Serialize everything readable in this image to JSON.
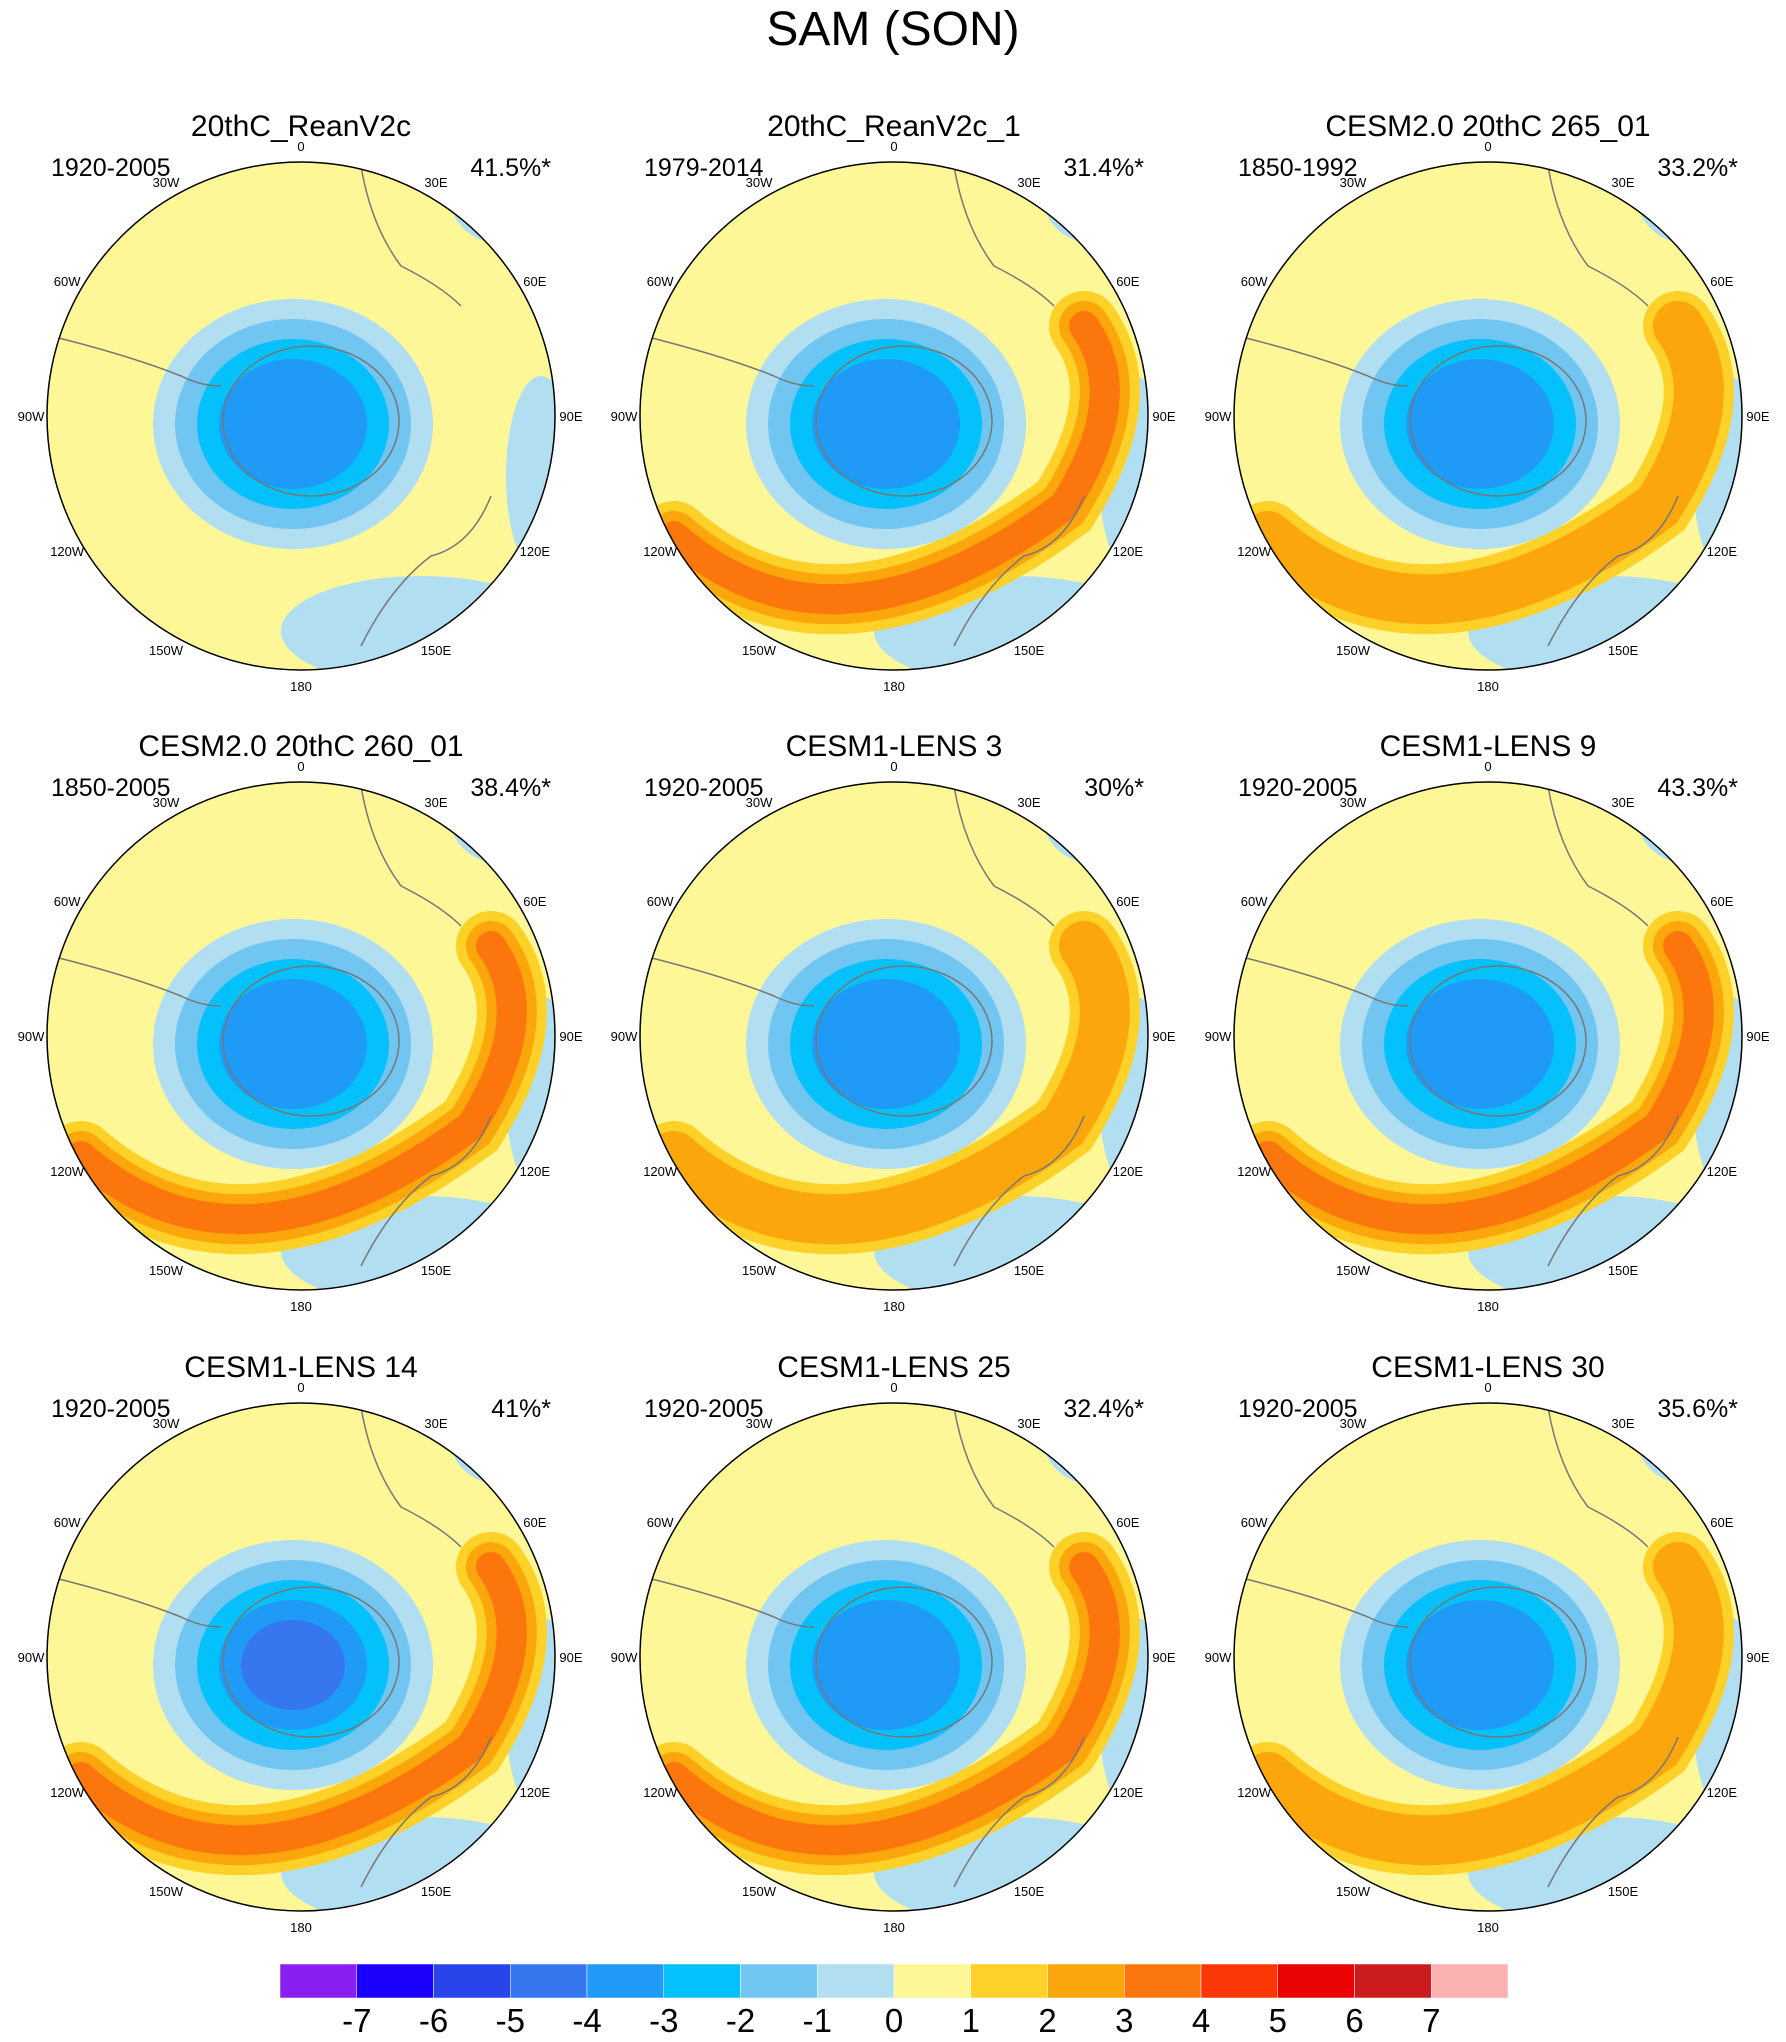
{
  "chart_data": {
    "type": "polar-contour-map-panels",
    "title": "SAM (SON)",
    "projection": "south-polar-stereographic",
    "longitude_labels": [
      "0",
      "30E",
      "60E",
      "90E",
      "120E",
      "150E",
      "180",
      "150W",
      "120W",
      "90W",
      "60W",
      "30W"
    ],
    "panels": [
      {
        "title": "20thC_ReanV2c",
        "period": "1920-2005",
        "variance": "41.5%*",
        "pattern": {
          "core": -4,
          "ring": -1,
          "pos": 0
        }
      },
      {
        "title": "20thC_ReanV2c_1",
        "period": "1979-2014",
        "variance": "31.4%*",
        "pattern": {
          "core": -4,
          "ring": -1,
          "pos": 3
        }
      },
      {
        "title": "CESM2.0 20thC 265_01",
        "period": "1850-1992",
        "variance": "33.2%*",
        "pattern": {
          "core": -4,
          "ring": -1,
          "pos": 2
        }
      },
      {
        "title": "CESM2.0 20thC 260_01",
        "period": "1850-2005",
        "variance": "38.4%*",
        "pattern": {
          "core": -4,
          "ring": -1,
          "pos": 3
        }
      },
      {
        "title": "CESM1-LENS 3",
        "period": "1920-2005",
        "variance": "30%*",
        "pattern": {
          "core": -4,
          "ring": -1,
          "pos": 2
        }
      },
      {
        "title": "CESM1-LENS 9",
        "period": "1920-2005",
        "variance": "43.3%*",
        "pattern": {
          "core": -4,
          "ring": -1,
          "pos": 3
        }
      },
      {
        "title": "CESM1-LENS 14",
        "period": "1920-2005",
        "variance": "41%*",
        "pattern": {
          "core": -5,
          "ring": -1,
          "pos": 3
        }
      },
      {
        "title": "CESM1-LENS 25",
        "period": "1920-2005",
        "variance": "32.4%*",
        "pattern": {
          "core": -4,
          "ring": -1,
          "pos": 3
        }
      },
      {
        "title": "CESM1-LENS 30",
        "period": "1920-2005",
        "variance": "35.6%*",
        "pattern": {
          "core": -4,
          "ring": -1,
          "pos": 2
        }
      }
    ],
    "colorbar": {
      "labels": [
        "-7",
        "-6",
        "-5",
        "-4",
        "-3",
        "-2",
        "-1",
        "0",
        "1",
        "2",
        "3",
        "4",
        "5",
        "6",
        "7"
      ],
      "colors": [
        "#8a1ef0",
        "#1a00fa",
        "#2a44ec",
        "#3676ee",
        "#1f9af7",
        "#05c1fb",
        "#71c5f1",
        "#b2def2",
        "#fdf798",
        "#fed129",
        "#fba70b",
        "#fb770d",
        "#fb3705",
        "#e90303",
        "#cc1b1e",
        "#fab1b0"
      ]
    }
  }
}
